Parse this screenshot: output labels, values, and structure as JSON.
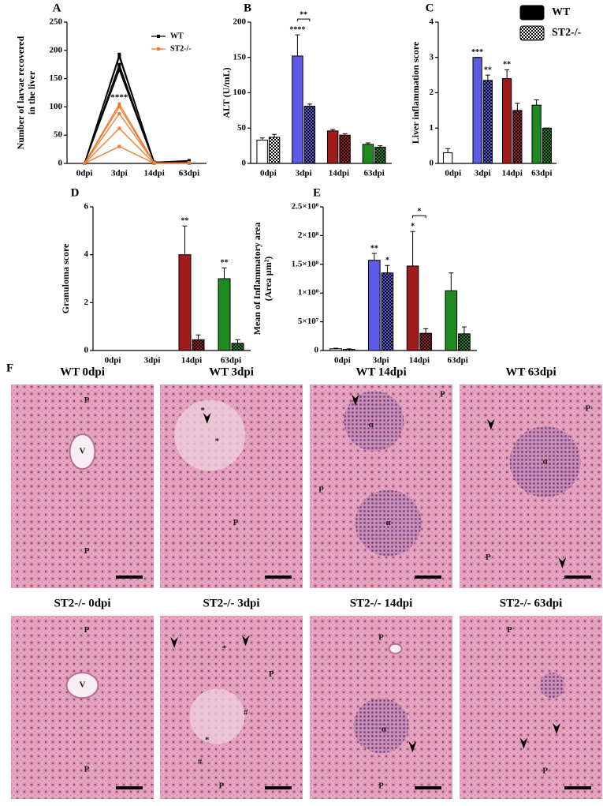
{
  "chart_data": [
    {
      "type": "line",
      "label": "A",
      "ylabel": [
        "Number of larvae recovered",
        "in the liver"
      ],
      "categories": [
        "0dpi",
        "3dpi",
        "14dpi",
        "63dpi"
      ],
      "ylim": [
        0,
        250
      ],
      "yticks": [
        0,
        50,
        100,
        150,
        200,
        250
      ],
      "legend": "top-right",
      "series": [
        {
          "name": "WT",
          "color": "#000000",
          "values": [
            [
              0,
              193,
              2,
              5
            ],
            [
              0,
              188,
              2,
              3
            ],
            [
              0,
              175,
              1,
              2
            ],
            [
              0,
              170,
              2,
              4
            ],
            [
              0,
              165,
              1,
              3
            ]
          ]
        },
        {
          "name": "ST2-/-",
          "color": "#f07a30",
          "values": [
            [
              0,
              105,
              1,
              1
            ],
            [
              0,
              100,
              0,
              1
            ],
            [
              0,
              88,
              1,
              0
            ],
            [
              0,
              62,
              0,
              1
            ],
            [
              0,
              30,
              0,
              0
            ]
          ],
          "annotations": [
            null,
            "****",
            null,
            null
          ]
        }
      ]
    },
    {
      "type": "bar",
      "label": "B",
      "ylabel": "ALT  (U/mL)",
      "categories": [
        "0dpi",
        "3dpi",
        "14dpi",
        "63dpi"
      ],
      "category_colors": [
        "#ffffff",
        "#5b5be6",
        "#a01c1c",
        "#1f8a1f"
      ],
      "ylim": [
        0,
        200
      ],
      "yticks": [
        0,
        50,
        100,
        150,
        200
      ],
      "series": [
        {
          "name": "WT",
          "pattern": "solid",
          "values": [
            33,
            152,
            46,
            27
          ],
          "errors": [
            3,
            30,
            2,
            2
          ],
          "annotations": [
            null,
            "****",
            null,
            null
          ]
        },
        {
          "name": "ST2-/-",
          "pattern": "checker",
          "values": [
            37,
            81,
            40,
            23
          ],
          "errors": [
            4,
            3,
            2,
            2
          ]
        }
      ],
      "bracket_labels": [
        null,
        "**",
        null,
        null
      ]
    },
    {
      "type": "bar",
      "label": "C",
      "ylabel": "Liver inflammation score",
      "categories": [
        "0dpi",
        "3dpi",
        "14dpi",
        "63dpi"
      ],
      "category_colors": [
        "#ffffff",
        "#5b5be6",
        "#a01c1c",
        "#1f8a1f"
      ],
      "ylim": [
        0,
        4
      ],
      "yticks": [
        0,
        1,
        2,
        3,
        4
      ],
      "legend": "top-right",
      "series": [
        {
          "name": "WT",
          "pattern": "solid",
          "color": "#000000",
          "values": [
            0.3,
            3.0,
            2.4,
            1.65
          ],
          "errors": [
            0.12,
            0,
            0.25,
            0.15
          ],
          "annotations": [
            null,
            "***",
            "**",
            null
          ]
        },
        {
          "name": "ST2-/-",
          "pattern": "checker",
          "color": "#000000",
          "values": [
            0,
            2.35,
            1.5,
            1.0
          ],
          "errors": [
            0,
            0.15,
            0.2,
            0
          ],
          "annotations": [
            null,
            "**",
            null,
            null
          ]
        }
      ]
    },
    {
      "type": "bar",
      "label": "D",
      "ylabel": "Granuloma score",
      "categories": [
        "0dpi",
        "3dpi",
        "14dpi",
        "63dpi"
      ],
      "category_colors": [
        "#ffffff",
        "#5b5be6",
        "#a01c1c",
        "#1f8a1f"
      ],
      "ylim": [
        0,
        6
      ],
      "yticks": [
        0,
        2,
        4,
        6
      ],
      "series": [
        {
          "name": "WT",
          "pattern": "solid",
          "values": [
            0,
            0,
            4.0,
            3.0
          ],
          "errors": [
            0,
            0,
            1.2,
            0.45
          ],
          "annotations": [
            null,
            null,
            "**",
            "**"
          ]
        },
        {
          "name": "ST2-/-",
          "pattern": "checker",
          "values": [
            0,
            0,
            0.45,
            0.3
          ],
          "errors": [
            0,
            0,
            0.2,
            0.15
          ]
        }
      ]
    },
    {
      "type": "bar",
      "label": "E",
      "ylabel": [
        "Mean of Inflammatory area",
        "(Area µm²)"
      ],
      "categories": [
        "0dpi",
        "3dpi",
        "14dpi",
        "63dpi"
      ],
      "category_colors": [
        "#ffffff",
        "#5b5be6",
        "#a01c1c",
        "#1f8a1f"
      ],
      "ylim": [
        0,
        250000000
      ],
      "yticks": [
        0,
        {
          "value": 50000000,
          "label": "5×10⁷"
        },
        {
          "value": 100000000,
          "label": "1×10⁸"
        },
        {
          "value": 150000000,
          "label": "1.5×10⁸"
        },
        {
          "value": 200000000,
          "label": "2×10⁸"
        },
        {
          "value": 250000000,
          "label": "2.5×10⁸"
        }
      ],
      "series": [
        {
          "name": "WT",
          "pattern": "solid",
          "values": [
            3000000,
            157000000,
            147000000,
            104000000
          ],
          "errors": [
            1000000,
            12000000,
            60000000,
            31000000
          ],
          "annotations": [
            null,
            "**",
            "*",
            null
          ]
        },
        {
          "name": "ST2-/-",
          "pattern": "checker",
          "values": [
            2000000,
            135000000,
            30000000,
            29000000
          ],
          "errors": [
            1000000,
            13000000,
            8000000,
            12000000
          ],
          "annotations": [
            null,
            "*",
            null,
            null
          ]
        }
      ],
      "bracket_labels": [
        null,
        null,
        "*",
        null
      ]
    }
  ],
  "micrographs": {
    "label": "F",
    "panels": [
      {
        "title": "WT 0dpi",
        "labels": [
          "P",
          "V",
          "P"
        ]
      },
      {
        "title": "WT 3dpi",
        "labels": [
          "*",
          "*",
          "P"
        ]
      },
      {
        "title": "WT 14dpi",
        "labels": [
          "P",
          "α",
          "P",
          "α"
        ]
      },
      {
        "title": "WT 63dpi",
        "labels": [
          "P",
          "α",
          "P"
        ]
      },
      {
        "title": "ST2-/- 0dpi",
        "labels": [
          "P",
          "V",
          "P"
        ]
      },
      {
        "title": "ST2-/- 3dpi",
        "labels": [
          "*",
          "P",
          "#",
          "*",
          "#",
          "P"
        ]
      },
      {
        "title": "ST2-/- 14dpi",
        "labels": [
          "P",
          "α",
          "P"
        ]
      },
      {
        "title": "ST2-/- 63dpi",
        "labels": [
          "P",
          "P"
        ]
      }
    ]
  }
}
